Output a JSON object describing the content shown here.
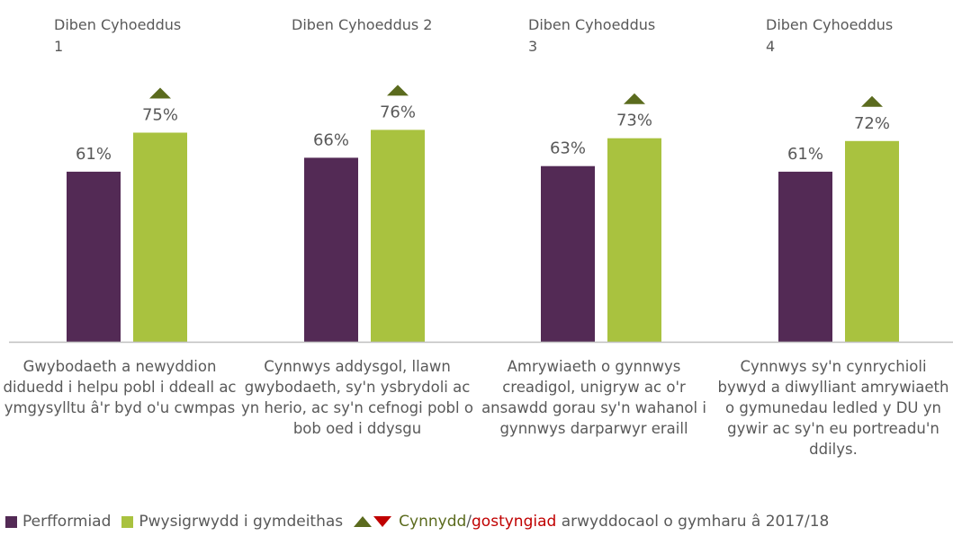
{
  "chart_data": {
    "type": "bar",
    "ylim": [
      0,
      100
    ],
    "groups": [
      {
        "title": "Diben Cyhoeddus 1",
        "description": "Gwybodaeth a newyddion diduedd i helpu pobl i ddeall ac ymgysylltu â'r byd o'u cwmpas"
      },
      {
        "title": "Diben Cyhoeddus 2",
        "description": "Cynnwys addysgol, llawn gwybodaeth, sy'n ysbrydoli ac yn herio, ac sy'n cefnogi pobl o bob oed i ddysgu"
      },
      {
        "title": "Diben Cyhoeddus 3",
        "description": "Amrywiaeth o gynnwys creadigol, unigryw ac o'r ansawdd gorau sy'n wahanol i gynnwys darparwyr eraill"
      },
      {
        "title": "Diben Cyhoeddus 4",
        "description": "Cynnwys sy'n cynrychioli bywyd a diwylliant amrywiaeth o gymunedau ledled y DU yn gywir ac sy'n eu portreadu'n ddilys."
      }
    ],
    "series": [
      {
        "name": "Perfformiad",
        "color": "#532a55",
        "values": [
          61,
          66,
          63,
          61
        ],
        "labels": [
          "61%",
          "66%",
          "63%",
          "61%"
        ]
      },
      {
        "name": "Pwysigrwydd i gymdeithas",
        "color": "#a9c23f",
        "values": [
          75,
          76,
          73,
          72
        ],
        "labels": [
          "75%",
          "76%",
          "73%",
          "72%"
        ],
        "significant_change": [
          "up",
          "up",
          "up",
          "up"
        ]
      }
    ],
    "legend": {
      "position": "bottom",
      "change_increase": "Cynnydd",
      "separator": "/",
      "change_decrease": "gostyngiad",
      "change_text": "arwyddocaol o gymharu â 2017/18",
      "increase_color": "#5b6b1e",
      "decrease_color": "#c00000"
    },
    "grid": false
  },
  "categories": [
    {
      "label": "Gwybodaeth a newyddion diduedd i helpu pobl i ddeall ac ymgysylltu â'r byd o'u cwmpas"
    },
    {
      "label": "Cynnwys addysgol, llawn gwybodaeth, sy'n ysbrydoli ac yn herio, ac sy'n cefnogi pobl o bob oed i ddysgu"
    },
    {
      "label": "Amrywiaeth o gynnwys creadigol, unigryw ac o'r ansawdd gorau sy'n wahanol i gynnwys darparwyr eraill"
    },
    {
      "label": "Cynnwys sy'n cynrychioli bywyd a diwylliant amrywiaeth o gymunedau ledled y DU yn gywir ac sy'n eu portreadu'n ddilys."
    }
  ],
  "legend": {
    "performance": "Perfformiad",
    "importance": "Pwysigrwydd i gymdeithas",
    "increase": "Cynnydd",
    "slash": "/",
    "decrease": "gostyngiad",
    "rest": "arwyddocaol o gymharu â 2017/18"
  }
}
